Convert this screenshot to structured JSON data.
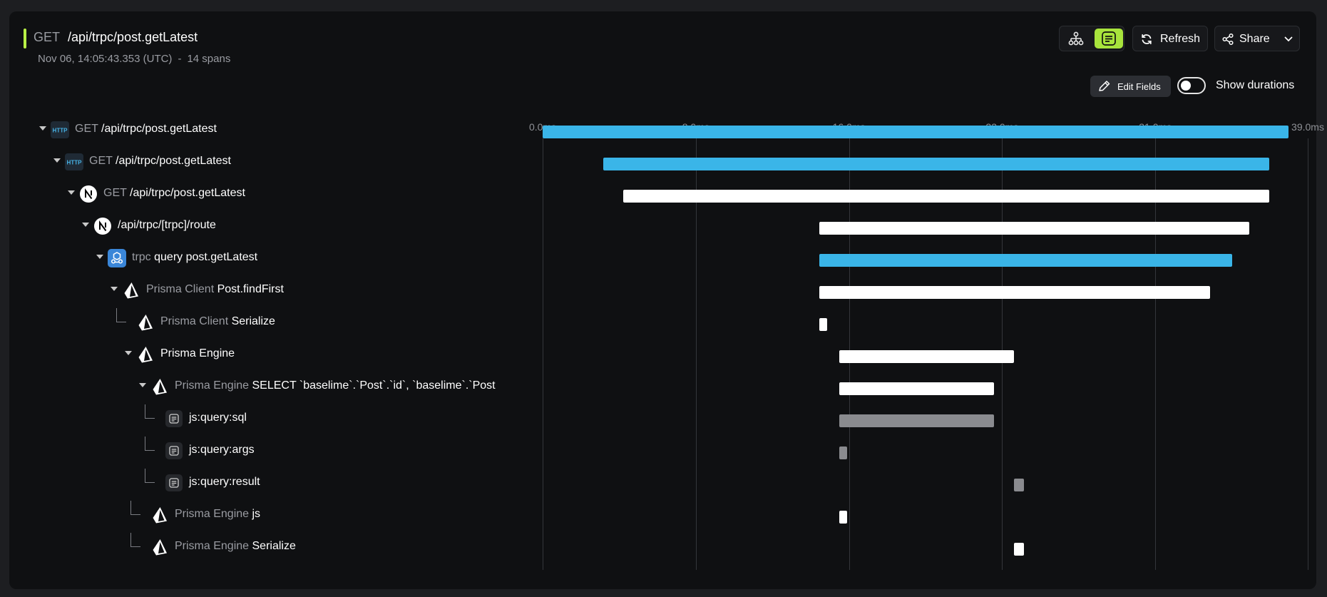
{
  "header": {
    "method": "GET",
    "path": "/api/trpc/post.getLatest",
    "timestamp": "Nov 06, 14:05:43.353 (UTC)",
    "separator": "-",
    "span_count": "14 spans"
  },
  "toolbar": {
    "tree_view_icon": "hierarchy-icon",
    "list_view_icon": "document-list-icon",
    "refresh_label": "Refresh",
    "share_label": "Share",
    "edit_fields_label": "Edit Fields",
    "show_durations_label": "Show durations",
    "show_durations_on": false
  },
  "colors": {
    "accent": "#b8f045",
    "http_bar": "#3ab5e8",
    "span_bar": "#ffffff",
    "js_bar": "#8a8b8f"
  },
  "timeline": {
    "max_ms": 39.0,
    "ticks": [
      "0.0ms",
      "8.0ms",
      "16.0ms",
      "23.0ms",
      "31.0ms",
      "39.0ms"
    ]
  },
  "spans": [
    {
      "prefix": "GET",
      "name": "/api/trpc/post.getLatest",
      "icon": "http-icon",
      "depth": 0,
      "expandable": true,
      "start_ms": 0.0,
      "end_ms": 38.0,
      "color": "http"
    },
    {
      "prefix": "GET",
      "name": "/api/trpc/post.getLatest",
      "icon": "http-icon",
      "depth": 1,
      "expandable": true,
      "start_ms": 3.1,
      "end_ms": 37.0,
      "color": "http"
    },
    {
      "prefix": "GET",
      "name": "/api/trpc/post.getLatest",
      "icon": "nextjs-icon",
      "depth": 2,
      "expandable": true,
      "start_ms": 4.1,
      "end_ms": 37.0,
      "color": "span"
    },
    {
      "prefix": "",
      "name": "/api/trpc/[trpc]/route",
      "icon": "nextjs-icon",
      "depth": 3,
      "expandable": true,
      "start_ms": 14.1,
      "end_ms": 36.0,
      "color": "span"
    },
    {
      "prefix": "trpc",
      "name": "query post.getLatest",
      "icon": "trpc-icon",
      "depth": 4,
      "expandable": true,
      "start_ms": 14.1,
      "end_ms": 35.1,
      "color": "http"
    },
    {
      "prefix": "Prisma Client",
      "name": "Post.findFirst",
      "icon": "prisma-icon",
      "depth": 5,
      "expandable": true,
      "start_ms": 14.1,
      "end_ms": 34.0,
      "color": "span"
    },
    {
      "prefix": "Prisma Client",
      "name": "Serialize",
      "icon": "prisma-icon",
      "depth": 6,
      "expandable": false,
      "start_ms": 14.1,
      "end_ms": 14.5,
      "color": "span"
    },
    {
      "prefix": "",
      "name": "Prisma Engine",
      "icon": "prisma-icon",
      "depth": 6,
      "expandable": true,
      "start_ms": 15.1,
      "end_ms": 24.0,
      "color": "span"
    },
    {
      "prefix": "Prisma Engine",
      "name": "SELECT `baselime`.`Post`.`id`, `baselime`.`Post",
      "icon": "prisma-icon",
      "depth": 7,
      "expandable": true,
      "start_ms": 15.1,
      "end_ms": 23.0,
      "color": "span"
    },
    {
      "prefix": "",
      "name": "js:query:sql",
      "icon": "document-icon",
      "depth": 8,
      "expandable": false,
      "start_ms": 15.1,
      "end_ms": 23.0,
      "color": "js"
    },
    {
      "prefix": "",
      "name": "js:query:args",
      "icon": "document-icon",
      "depth": 8,
      "expandable": false,
      "start_ms": 15.1,
      "end_ms": 15.5,
      "color": "js"
    },
    {
      "prefix": "",
      "name": "js:query:result",
      "icon": "document-icon",
      "depth": 8,
      "expandable": false,
      "start_ms": 24.0,
      "end_ms": 24.5,
      "color": "js"
    },
    {
      "prefix": "Prisma Engine",
      "name": "js",
      "icon": "prisma-icon",
      "depth": 7,
      "expandable": false,
      "start_ms": 15.1,
      "end_ms": 15.5,
      "color": "span"
    },
    {
      "prefix": "Prisma Engine",
      "name": "Serialize",
      "icon": "prisma-icon",
      "depth": 7,
      "expandable": false,
      "start_ms": 24.0,
      "end_ms": 24.5,
      "color": "span"
    }
  ]
}
